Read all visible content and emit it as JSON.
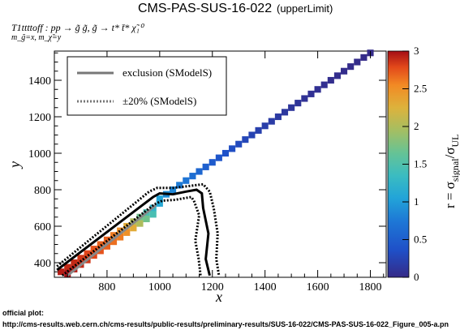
{
  "chart_data": {
    "type": "heatmap",
    "title": "CMS-PAS-SUS-16-022",
    "title_suffix": "(upperLimit)",
    "subtitle_process": "T1ttttoff : pp → g̃ g̃, g̃  → t* t̄* χ̃₁⁰",
    "subtitle_masses": "m_g̃=x, m_χ̃=y",
    "xlabel": "x",
    "ylabel": "y",
    "xlim": [
      600,
      1860
    ],
    "ylim": [
      320,
      1560
    ],
    "xticks": [
      800,
      1000,
      1200,
      1400,
      1600,
      1800
    ],
    "yticks": [
      400,
      600,
      800,
      1000,
      1200,
      1400
    ],
    "colorbar": {
      "label": "r = σsignal/σUL",
      "range": [
        0,
        3
      ],
      "ticks": [
        "0",
        "0.5",
        "1",
        "1.5",
        "2",
        "2.5",
        "3"
      ]
    },
    "legend": {
      "position": "top-left",
      "entries": [
        {
          "label": "exclusion (SModelS)",
          "style": "solid"
        },
        {
          "label": "±20% (SModelS)",
          "style": "dotted"
        }
      ]
    },
    "cells": [
      {
        "x": 625,
        "y": 350,
        "r": 2.95
      },
      {
        "x": 650,
        "y": 375,
        "r": 2.9
      },
      {
        "x": 650,
        "y": 340,
        "r": 3.0
      },
      {
        "x": 675,
        "y": 400,
        "r": 2.9
      },
      {
        "x": 675,
        "y": 365,
        "r": 2.95
      },
      {
        "x": 700,
        "y": 425,
        "r": 2.85
      },
      {
        "x": 700,
        "y": 390,
        "r": 2.9
      },
      {
        "x": 725,
        "y": 450,
        "r": 2.8
      },
      {
        "x": 725,
        "y": 415,
        "r": 2.85
      },
      {
        "x": 750,
        "y": 475,
        "r": 2.75
      },
      {
        "x": 750,
        "y": 440,
        "r": 2.8
      },
      {
        "x": 775,
        "y": 500,
        "r": 2.7
      },
      {
        "x": 775,
        "y": 465,
        "r": 2.75
      },
      {
        "x": 800,
        "y": 525,
        "r": 2.7
      },
      {
        "x": 800,
        "y": 490,
        "r": 2.7
      },
      {
        "x": 825,
        "y": 550,
        "r": 2.6
      },
      {
        "x": 825,
        "y": 515,
        "r": 2.65
      },
      {
        "x": 850,
        "y": 575,
        "r": 2.5
      },
      {
        "x": 850,
        "y": 540,
        "r": 2.6
      },
      {
        "x": 875,
        "y": 600,
        "r": 2.3
      },
      {
        "x": 875,
        "y": 565,
        "r": 2.5
      },
      {
        "x": 900,
        "y": 625,
        "r": 2.0
      },
      {
        "x": 900,
        "y": 590,
        "r": 2.3
      },
      {
        "x": 925,
        "y": 650,
        "r": 1.7
      },
      {
        "x": 925,
        "y": 615,
        "r": 2.0
      },
      {
        "x": 950,
        "y": 675,
        "r": 1.45
      },
      {
        "x": 950,
        "y": 640,
        "r": 1.7
      },
      {
        "x": 975,
        "y": 700,
        "r": 1.25
      },
      {
        "x": 975,
        "y": 665,
        "r": 1.45
      },
      {
        "x": 1000,
        "y": 750,
        "r": 1.05
      },
      {
        "x": 1000,
        "y": 725,
        "r": 1.1
      },
      {
        "x": 1025,
        "y": 775,
        "r": 0.9
      },
      {
        "x": 1050,
        "y": 800,
        "r": 0.85
      },
      {
        "x": 1075,
        "y": 825,
        "r": 0.78
      },
      {
        "x": 1100,
        "y": 850,
        "r": 0.72
      },
      {
        "x": 1125,
        "y": 875,
        "r": 0.65
      },
      {
        "x": 1150,
        "y": 900,
        "r": 0.58
      },
      {
        "x": 1175,
        "y": 925,
        "r": 0.52
      },
      {
        "x": 1200,
        "y": 950,
        "r": 0.47
      },
      {
        "x": 1225,
        "y": 975,
        "r": 0.42
      },
      {
        "x": 1250,
        "y": 1000,
        "r": 0.38
      },
      {
        "x": 1275,
        "y": 1025,
        "r": 0.34
      },
      {
        "x": 1300,
        "y": 1050,
        "r": 0.3
      },
      {
        "x": 1325,
        "y": 1075,
        "r": 0.27
      },
      {
        "x": 1350,
        "y": 1100,
        "r": 0.24
      },
      {
        "x": 1375,
        "y": 1125,
        "r": 0.21
      },
      {
        "x": 1400,
        "y": 1150,
        "r": 0.19
      },
      {
        "x": 1425,
        "y": 1175,
        "r": 0.17
      },
      {
        "x": 1450,
        "y": 1200,
        "r": 0.15
      },
      {
        "x": 1475,
        "y": 1225,
        "r": 0.13
      },
      {
        "x": 1500,
        "y": 1250,
        "r": 0.11
      },
      {
        "x": 1525,
        "y": 1275,
        "r": 0.1
      },
      {
        "x": 1550,
        "y": 1300,
        "r": 0.08
      },
      {
        "x": 1575,
        "y": 1325,
        "r": 0.07
      },
      {
        "x": 1600,
        "y": 1350,
        "r": 0.06
      },
      {
        "x": 1625,
        "y": 1375,
        "r": 0.05
      },
      {
        "x": 1650,
        "y": 1400,
        "r": 0.04
      },
      {
        "x": 1675,
        "y": 1425,
        "r": 0.035
      },
      {
        "x": 1700,
        "y": 1450,
        "r": 0.03
      },
      {
        "x": 1725,
        "y": 1475,
        "r": 0.02
      },
      {
        "x": 1750,
        "y": 1500,
        "r": 0.015
      },
      {
        "x": 1775,
        "y": 1525,
        "r": 0.01
      },
      {
        "x": 1800,
        "y": 1550,
        "r": 0.01
      }
    ],
    "exclusion_line": [
      [
        610,
        360
      ],
      [
        975,
        760
      ],
      [
        1000,
        780
      ],
      [
        1050,
        775
      ],
      [
        1100,
        790
      ],
      [
        1140,
        800
      ],
      [
        1160,
        780
      ],
      [
        1165,
        700
      ],
      [
        1185,
        560
      ],
      [
        1175,
        420
      ],
      [
        1190,
        330
      ]
    ],
    "exclusion_plus20": [
      [
        610,
        380
      ],
      [
        960,
        790
      ],
      [
        990,
        810
      ],
      [
        1050,
        810
      ],
      [
        1110,
        820
      ],
      [
        1165,
        830
      ],
      [
        1190,
        790
      ],
      [
        1205,
        700
      ],
      [
        1220,
        560
      ],
      [
        1215,
        420
      ],
      [
        1225,
        330
      ]
    ],
    "exclusion_minus20": [
      [
        630,
        330
      ],
      [
        980,
        720
      ],
      [
        1010,
        740
      ],
      [
        1060,
        745
      ],
      [
        1100,
        755
      ],
      [
        1120,
        760
      ],
      [
        1130,
        740
      ],
      [
        1150,
        660
      ],
      [
        1135,
        520
      ],
      [
        1148,
        420
      ],
      [
        1155,
        330
      ]
    ],
    "lower_band_line": [
      [
        650,
        330
      ],
      [
        985,
        715
      ]
    ]
  },
  "footer": {
    "label": "official plot:",
    "url": "http://cms-results.web.cern.ch/cms-results/public-results/preliminary-results/SUS-16-022/CMS-PAS-SUS-16-022_Figure_005-a.pn"
  },
  "colors": {
    "solid_line": "#000000",
    "dotted_line": "#000000",
    "grey_line": "#888888",
    "legend_solid": "#777777",
    "legend_dotted": "#777777"
  }
}
